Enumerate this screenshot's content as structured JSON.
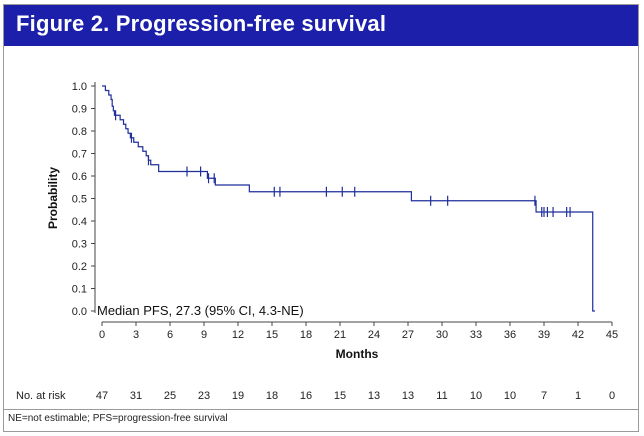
{
  "header": {
    "title": "Figure 2. Progression-free survival"
  },
  "footnote": "NE=not estimable; PFS=progression-free survival",
  "colors": {
    "banner": "#1b1fa9",
    "curve": "#1f2f9a"
  },
  "chart_data": {
    "type": "line",
    "title": "Figure 2. Progression-free survival",
    "xlabel": "Months",
    "ylabel": "Probability",
    "xlim": [
      0,
      45
    ],
    "ylim": [
      0,
      1.0
    ],
    "xticks": [
      0,
      3,
      6,
      9,
      12,
      15,
      18,
      21,
      24,
      27,
      30,
      33,
      36,
      39,
      42,
      45
    ],
    "yticks": [
      0.0,
      0.1,
      0.2,
      0.3,
      0.4,
      0.5,
      0.6,
      0.7,
      0.8,
      0.9,
      1.0
    ],
    "ytick_labels": [
      "0.0",
      "0.1",
      "0.2",
      "0.3",
      "0.4",
      "0.5",
      "0.6",
      "0.7",
      "0.8",
      "0.9",
      "1.0"
    ],
    "annotation": "Median PFS, 27.3 (95% CI, 4.3-NE)",
    "series": [
      {
        "name": "PFS",
        "steps": [
          [
            0,
            1.0
          ],
          [
            0.3,
            0.98
          ],
          [
            0.6,
            0.96
          ],
          [
            0.8,
            0.94
          ],
          [
            0.9,
            0.91
          ],
          [
            1.0,
            0.89
          ],
          [
            1.1,
            0.87
          ],
          [
            1.6,
            0.85
          ],
          [
            1.9,
            0.83
          ],
          [
            2.1,
            0.81
          ],
          [
            2.3,
            0.79
          ],
          [
            2.5,
            0.77
          ],
          [
            2.8,
            0.75
          ],
          [
            3.2,
            0.73
          ],
          [
            3.6,
            0.71
          ],
          [
            3.9,
            0.69
          ],
          [
            4.1,
            0.67
          ],
          [
            4.3,
            0.65
          ],
          [
            5.0,
            0.62
          ],
          [
            9.3,
            0.59
          ],
          [
            10.0,
            0.56
          ],
          [
            13.0,
            0.53
          ],
          [
            27.3,
            0.49
          ],
          [
            38.3,
            0.44
          ],
          [
            43.3,
            0.0
          ]
        ],
        "censored": [
          1.2,
          2.6,
          4.1,
          7.5,
          8.7,
          9.4,
          9.9,
          15.2,
          15.7,
          19.8,
          21.2,
          22.3,
          29.0,
          30.5,
          38.2,
          38.8,
          39.0,
          39.3,
          39.8,
          41.0,
          41.3
        ],
        "end": [
          43.5,
          0.0
        ]
      }
    ],
    "at_risk": {
      "label": "No. at risk",
      "values": [
        "47",
        "31",
        "25",
        "23",
        "19",
        "18",
        "16",
        "15",
        "13",
        "13",
        "11",
        "10",
        "10",
        "7",
        "1",
        "0"
      ]
    }
  }
}
